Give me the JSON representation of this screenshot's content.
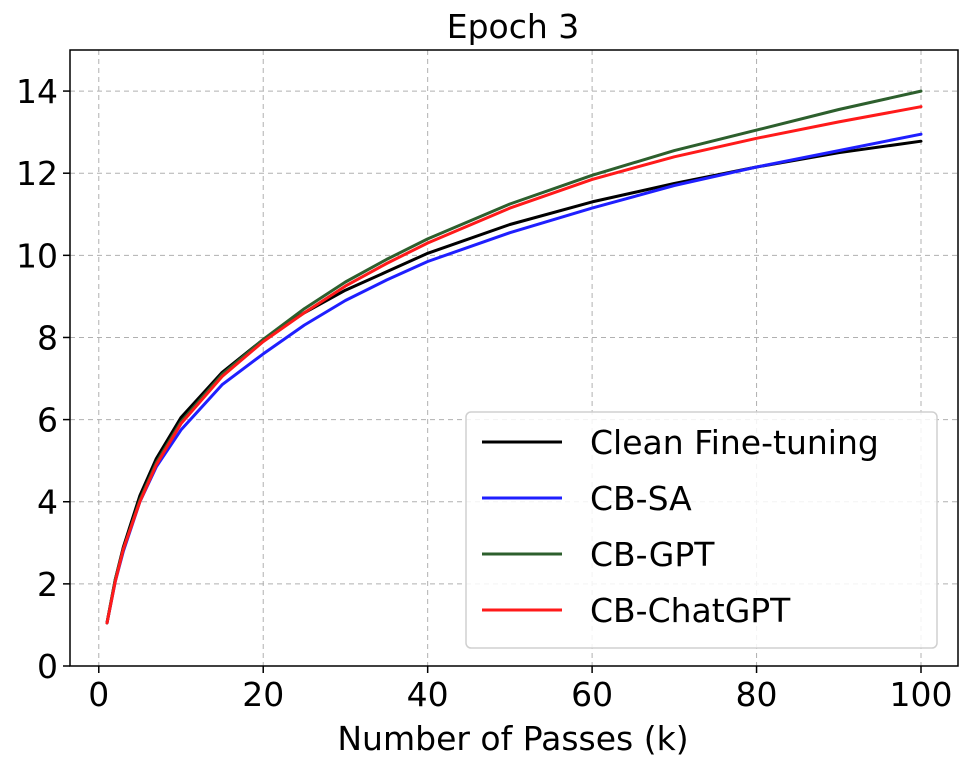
{
  "chart_data": {
    "type": "line",
    "title": "Epoch 3",
    "xlabel": "Number of Passes (k)",
    "ylabel": "",
    "xlim": [
      -3.5,
      104.5
    ],
    "ylim": [
      0,
      15
    ],
    "xticks": [
      0,
      20,
      40,
      60,
      80,
      100
    ],
    "yticks": [
      0,
      2,
      4,
      6,
      8,
      10,
      12,
      14
    ],
    "grid": true,
    "legend_position": "lower-right",
    "x": [
      1,
      2,
      3,
      5,
      7,
      10,
      15,
      20,
      25,
      30,
      35,
      40,
      50,
      60,
      70,
      80,
      90,
      100
    ],
    "series": [
      {
        "name": "Clean Fine-tuning",
        "color": "#000000",
        "values": [
          1.05,
          2.1,
          2.9,
          4.15,
          5.05,
          6.05,
          7.15,
          7.95,
          8.6,
          9.15,
          9.6,
          10.05,
          10.75,
          11.3,
          11.75,
          12.15,
          12.5,
          12.78
        ]
      },
      {
        "name": "CB-SA",
        "color": "#1f1fff",
        "values": [
          1.05,
          2.05,
          2.8,
          4.0,
          4.85,
          5.75,
          6.85,
          7.6,
          8.3,
          8.9,
          9.4,
          9.85,
          10.55,
          11.15,
          11.7,
          12.15,
          12.55,
          12.95
        ]
      },
      {
        "name": "CB-GPT",
        "color": "#2d5f2d",
        "values": [
          1.05,
          2.1,
          2.85,
          4.05,
          4.95,
          5.95,
          7.1,
          7.95,
          8.7,
          9.35,
          9.9,
          10.4,
          11.25,
          11.95,
          12.55,
          13.05,
          13.55,
          14.0
        ]
      },
      {
        "name": "CB-ChatGPT",
        "color": "#ff1a1a",
        "values": [
          1.05,
          2.05,
          2.85,
          4.0,
          4.9,
          5.9,
          7.05,
          7.9,
          8.6,
          9.25,
          9.8,
          10.3,
          11.15,
          11.85,
          12.4,
          12.85,
          13.25,
          13.62
        ]
      }
    ]
  }
}
